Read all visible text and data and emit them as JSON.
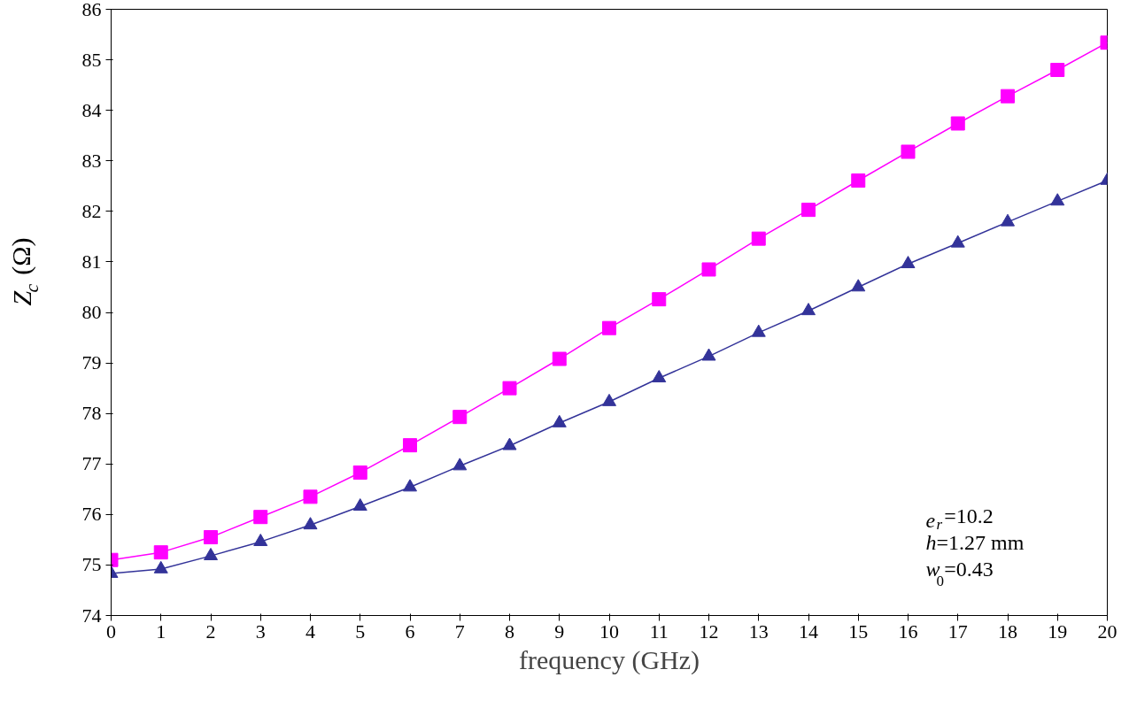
{
  "chart_data": {
    "type": "line",
    "xlabel": "frequency (GHz)",
    "ylabel": "Z$_{c}$ (Ω)",
    "x": [
      0,
      1,
      2,
      3,
      4,
      5,
      6,
      7,
      8,
      9,
      10,
      11,
      12,
      13,
      14,
      15,
      16,
      17,
      18,
      19,
      20
    ],
    "series": [
      {
        "color": "#ff00ff",
        "marker": "square",
        "values": [
          75.1,
          75.25,
          75.55,
          75.95,
          76.35,
          76.83,
          77.37,
          77.93,
          78.5,
          79.08,
          79.69,
          80.26,
          80.85,
          81.46,
          82.03,
          82.61,
          83.18,
          83.74,
          84.28,
          84.8,
          85.34
        ]
      },
      {
        "color": "#333399",
        "marker": "triangle",
        "values": [
          74.83,
          74.92,
          75.18,
          75.46,
          75.79,
          76.16,
          76.54,
          76.96,
          77.36,
          77.81,
          78.23,
          78.7,
          79.13,
          79.6,
          80.03,
          80.5,
          80.96,
          81.37,
          81.79,
          82.2,
          82.61
        ]
      }
    ],
    "xlim": [
      0,
      20
    ],
    "ylim": [
      74,
      86
    ],
    "xticks": [
      0,
      1,
      2,
      3,
      4,
      5,
      6,
      7,
      8,
      9,
      10,
      11,
      12,
      13,
      14,
      15,
      16,
      17,
      18,
      19,
      20
    ],
    "yticks": [
      74,
      75,
      76,
      77,
      78,
      79,
      80,
      81,
      82,
      83,
      84,
      85,
      86
    ],
    "annotations": [
      "e$_{r}$=10.2",
      "h=1.27 mm",
      "w$_{0}$=0.43"
    ],
    "grid": false,
    "line_style": "solid"
  }
}
